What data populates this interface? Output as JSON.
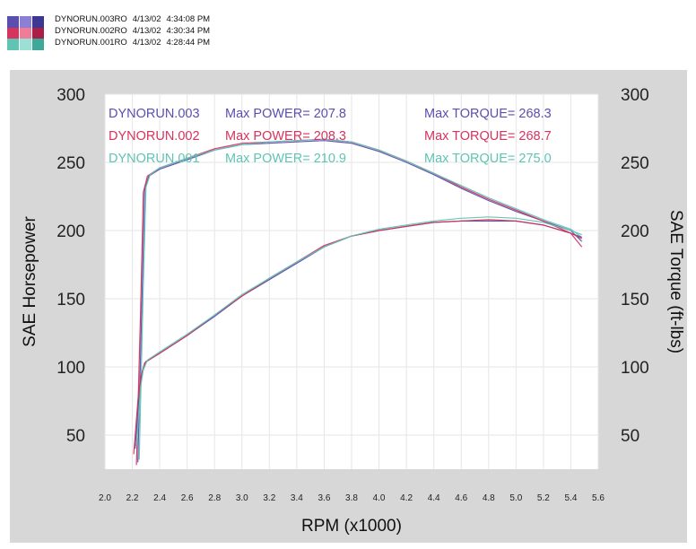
{
  "header": {
    "runs": [
      {
        "name": "DYNORUN.003RO",
        "date": "4/13/02",
        "time": "4:34:08 PM"
      },
      {
        "name": "DYNORUN.002RO",
        "date": "4/13/02",
        "time": "4:30:34 PM"
      },
      {
        "name": "DYNORUN.001RO",
        "date": "4/13/02",
        "time": "4:28:44 PM"
      }
    ]
  },
  "chart_data": {
    "type": "line",
    "xlabel": "RPM (x1000)",
    "ylabel_left": "SAE Horsepower",
    "ylabel_right": "SAE Torque (ft-lbs)",
    "xlim": [
      2.0,
      5.6
    ],
    "ylim": [
      25,
      300
    ],
    "x_ticks": [
      "2.0",
      "2.2",
      "2.4",
      "2.6",
      "2.8",
      "3.0",
      "3.2",
      "3.4",
      "3.6",
      "3.8",
      "4.0",
      "4.2",
      "4.4",
      "4.6",
      "4.8",
      "5.0",
      "5.2",
      "5.4",
      "5.6"
    ],
    "y_ticks_left": [
      "300",
      "250",
      "200",
      "150",
      "100",
      "50"
    ],
    "y_ticks_right": [
      "300",
      "250",
      "200",
      "150",
      "100",
      "50"
    ],
    "legend": [
      {
        "run": "DYNORUN.003",
        "power_label": "Max POWER=",
        "power": "207.8",
        "torque_label": "Max TORQUE=",
        "torque": "268.3",
        "color": "#5a4fb0"
      },
      {
        "run": "DYNORUN.002",
        "power_label": "Max POWER=",
        "power": "208.3",
        "torque_label": "Max TORQUE=",
        "torque": "268.7",
        "color": "#d6335e"
      },
      {
        "run": "DYNORUN.001",
        "power_label": "Max POWER=",
        "power": "210.9",
        "torque_label": "Max TORQUE=",
        "torque": "275.0",
        "color": "#5fc4b4"
      }
    ],
    "series": [
      {
        "name": "DYNORUN.003",
        "kind": "torque",
        "color": "#5a4fb0",
        "x": [
          2.24,
          2.27,
          2.29,
          2.32,
          2.4,
          2.6,
          2.8,
          3.0,
          3.2,
          3.4,
          3.6,
          3.8,
          4.0,
          4.2,
          4.4,
          4.6,
          4.8,
          5.0,
          5.2,
          5.4,
          5.48
        ],
        "y": [
          30,
          150,
          230,
          240,
          245,
          252,
          259,
          263,
          264,
          265,
          266,
          264,
          258,
          250,
          241,
          231,
          222,
          214,
          207,
          200,
          192
        ]
      },
      {
        "name": "DYNORUN.002",
        "kind": "torque",
        "color": "#d6335e",
        "x": [
          2.23,
          2.26,
          2.28,
          2.31,
          2.4,
          2.6,
          2.8,
          3.0,
          3.2,
          3.4,
          3.6,
          3.8,
          4.0,
          4.2,
          4.4,
          4.6,
          4.8,
          5.0,
          5.2,
          5.4,
          5.48
        ],
        "y": [
          28,
          140,
          228,
          240,
          246,
          253,
          260,
          264,
          265,
          266,
          267,
          265,
          259,
          251,
          242,
          232,
          223,
          215,
          207,
          198,
          188
        ]
      },
      {
        "name": "DYNORUN.001",
        "kind": "torque",
        "color": "#5fc4b4",
        "x": [
          2.25,
          2.28,
          2.3,
          2.33,
          2.4,
          2.6,
          2.8,
          3.0,
          3.2,
          3.4,
          3.6,
          3.8,
          4.0,
          4.2,
          4.4,
          4.6,
          4.8,
          5.0,
          5.2,
          5.4,
          5.48
        ],
        "y": [
          32,
          160,
          232,
          241,
          246,
          253,
          259,
          263,
          265,
          266,
          267,
          265,
          259,
          251,
          242,
          233,
          224,
          216,
          208,
          201,
          195
        ]
      },
      {
        "name": "DYNORUN.003",
        "kind": "power",
        "color": "#5a4fb0",
        "x": [
          2.22,
          2.25,
          2.27,
          2.3,
          2.4,
          2.6,
          2.8,
          3.0,
          3.2,
          3.4,
          3.6,
          3.8,
          4.0,
          4.2,
          4.4,
          4.6,
          4.8,
          5.0,
          5.2,
          5.4,
          5.48
        ],
        "y": [
          40,
          80,
          95,
          104,
          110,
          123,
          137,
          152,
          164,
          176,
          188,
          196,
          200,
          203,
          206,
          207,
          207,
          207,
          204,
          198,
          195
        ]
      },
      {
        "name": "DYNORUN.002",
        "kind": "power",
        "color": "#d6335e",
        "x": [
          2.21,
          2.24,
          2.26,
          2.29,
          2.4,
          2.6,
          2.8,
          3.0,
          3.2,
          3.4,
          3.6,
          3.8,
          4.0,
          4.2,
          4.4,
          4.6,
          4.8,
          5.0,
          5.2,
          5.4,
          5.48
        ],
        "y": [
          36,
          75,
          92,
          103,
          110,
          123,
          138,
          152,
          165,
          177,
          189,
          196,
          200,
          203,
          206,
          207,
          208,
          207,
          204,
          198,
          194
        ]
      },
      {
        "name": "DYNORUN.001",
        "kind": "power",
        "color": "#5fc4b4",
        "x": [
          2.23,
          2.26,
          2.28,
          2.31,
          2.4,
          2.6,
          2.8,
          3.0,
          3.2,
          3.4,
          3.6,
          3.8,
          4.0,
          4.2,
          4.4,
          4.6,
          4.8,
          5.0,
          5.2,
          5.4,
          5.48
        ],
        "y": [
          42,
          85,
          98,
          105,
          111,
          124,
          138,
          153,
          165,
          177,
          188,
          196,
          201,
          204,
          207,
          209,
          210,
          209,
          206,
          200,
          197
        ]
      }
    ]
  }
}
